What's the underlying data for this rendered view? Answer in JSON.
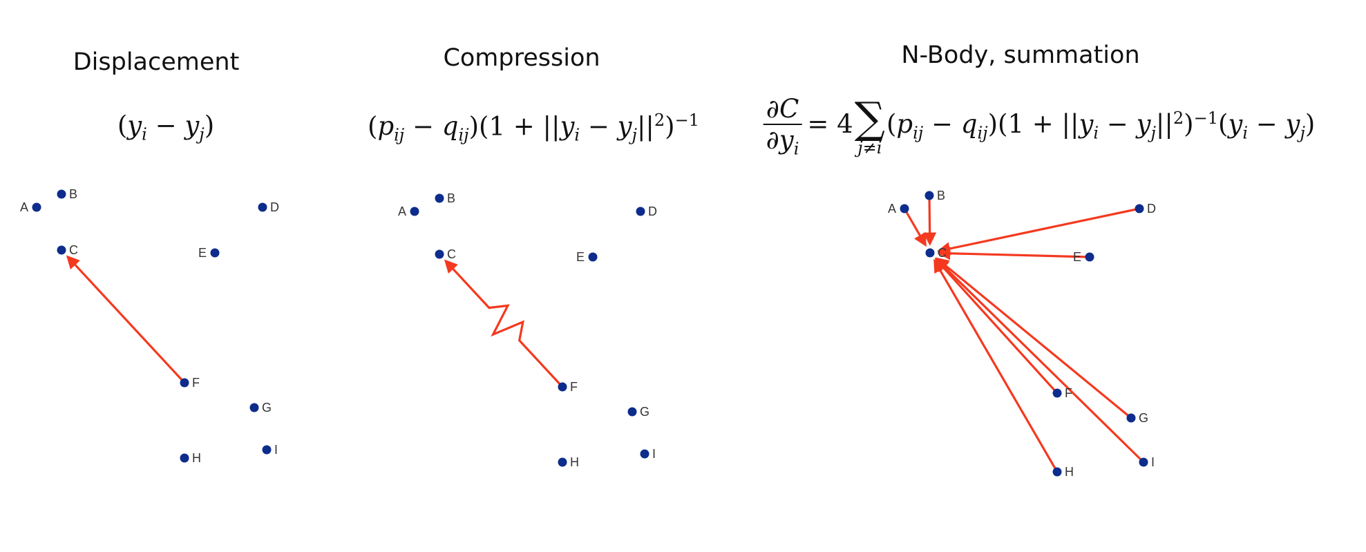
{
  "colors": {
    "point": "#0d2c8c",
    "arrow": "#f4391f",
    "text": "#111111"
  },
  "panels": [
    {
      "title": "Displacement",
      "formula_text": "(y_i − y_j)",
      "arrow_style": "straight"
    },
    {
      "title": "Compression",
      "formula_text": "(p_ij − q_ij)(1 + ||y_i − y_j||^2)^−1",
      "arrow_style": "spring"
    },
    {
      "title": "N-Body, summation",
      "formula_text": "∂C/∂y_i = 4 Σ_{j≠i} (p_ij − q_ij)(1 + ||y_i − y_j||^2)^−1 (y_i − y_j)",
      "arrow_style": "straight"
    }
  ],
  "points": [
    "A",
    "B",
    "C",
    "D",
    "E",
    "F",
    "G",
    "H",
    "I"
  ],
  "arrows": [
    {
      "panel": 0,
      "from": "F",
      "to": "C"
    },
    {
      "panel": 1,
      "from": "F",
      "to": "C"
    },
    {
      "panel": 2,
      "from": "A",
      "to": "C"
    },
    {
      "panel": 2,
      "from": "B",
      "to": "C"
    },
    {
      "panel": 2,
      "from": "D",
      "to": "C"
    },
    {
      "panel": 2,
      "from": "E",
      "to": "C"
    },
    {
      "panel": 2,
      "from": "F",
      "to": "C"
    },
    {
      "panel": 2,
      "from": "G",
      "to": "C"
    },
    {
      "panel": 2,
      "from": "H",
      "to": "C"
    },
    {
      "panel": 2,
      "from": "I",
      "to": "C"
    }
  ]
}
